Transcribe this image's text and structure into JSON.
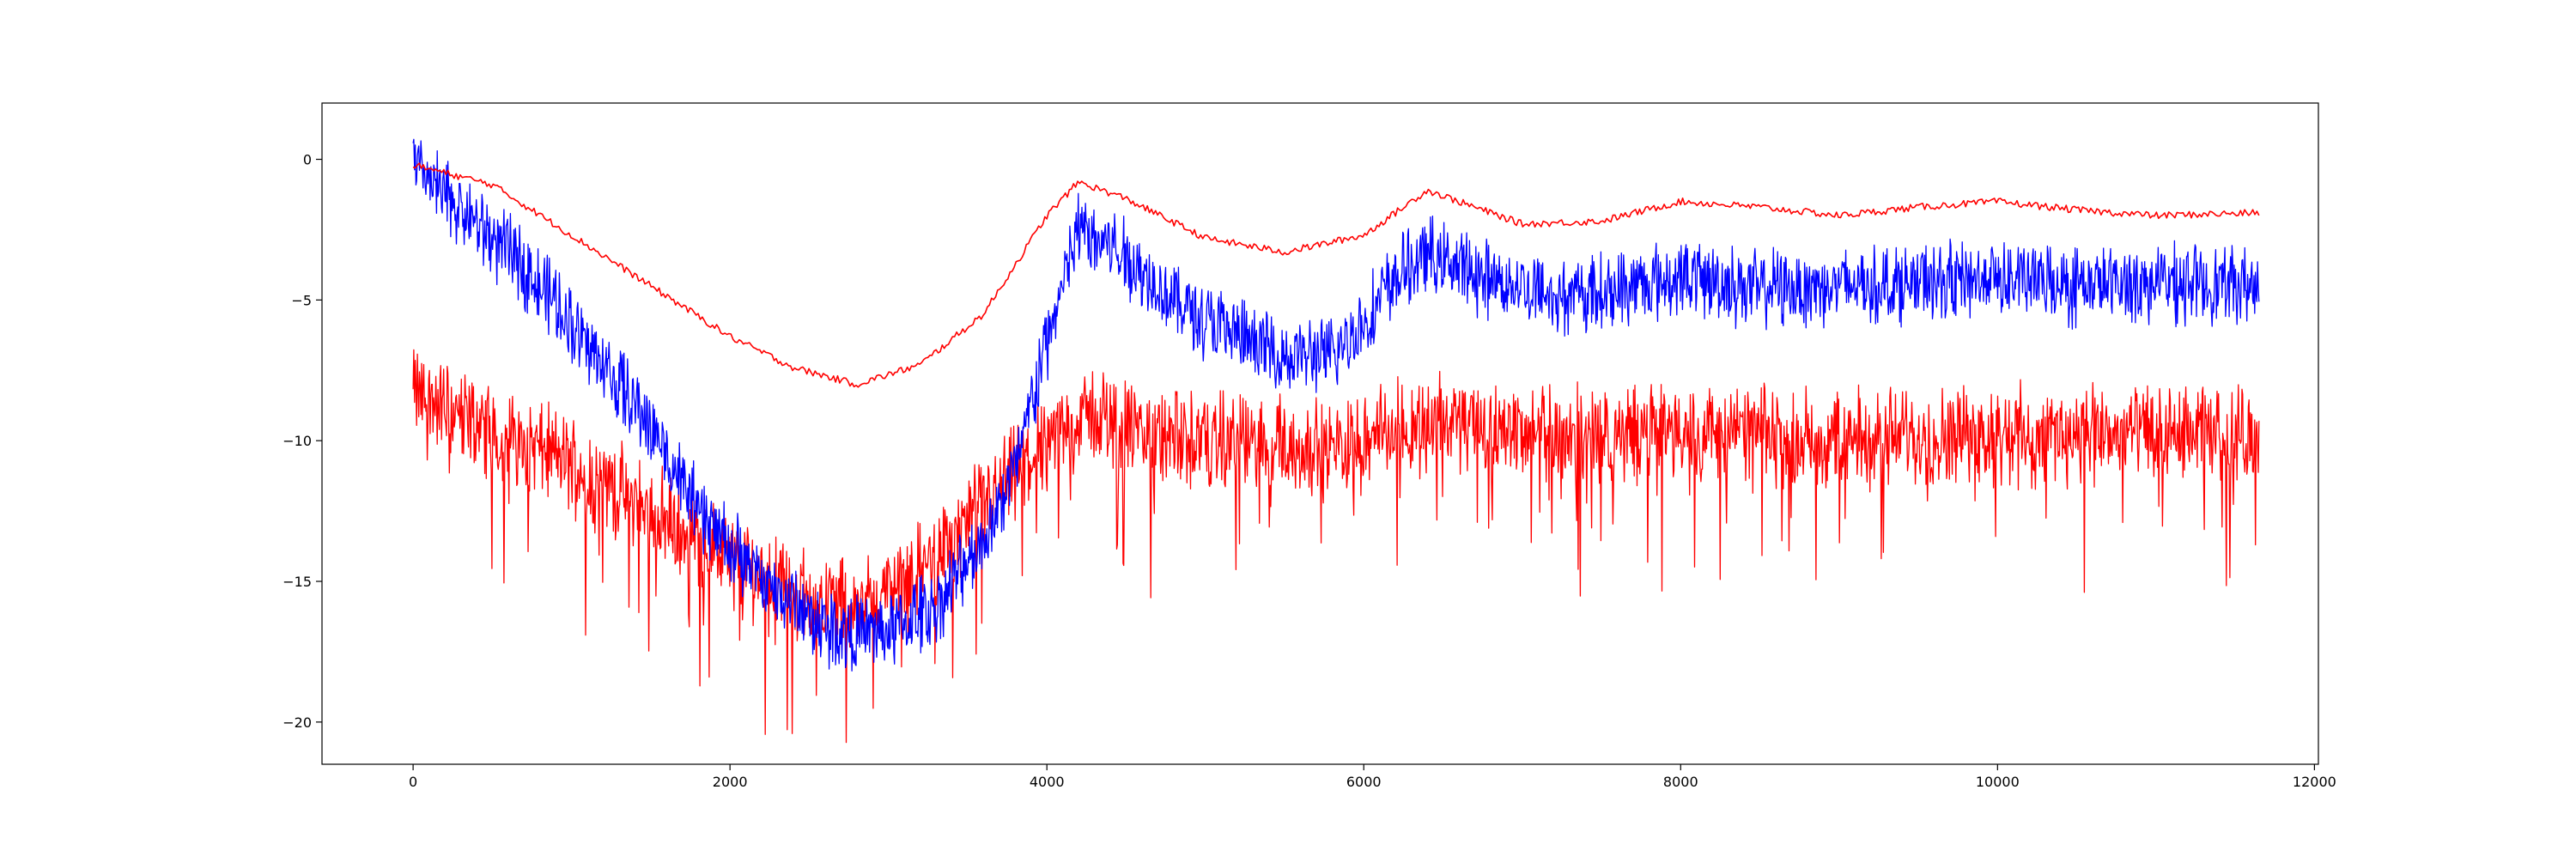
{
  "chart_data": {
    "type": "line",
    "title": "",
    "xlabel": "",
    "ylabel": "",
    "xlim": [
      -575,
      12025
    ],
    "ylim": [
      -21.5,
      2
    ],
    "x_ticks": [
      0,
      2000,
      4000,
      6000,
      8000,
      10000,
      12000
    ],
    "x_tick_labels": [
      "0",
      "2000",
      "4000",
      "6000",
      "8000",
      "10000",
      "12000"
    ],
    "y_ticks": [
      0,
      -5,
      -10,
      -15,
      -20
    ],
    "y_tick_labels": [
      "0",
      "−5",
      "−10",
      "−15",
      "−20"
    ],
    "grid": false,
    "legend": "none",
    "x_extent": [
      0,
      11650
    ],
    "series": [
      {
        "color": "#ff0000",
        "style": "smooth",
        "x": [
          0,
          500,
          1000,
          1500,
          2000,
          2400,
          2800,
          3200,
          3600,
          4000,
          4200,
          4500,
          5000,
          5500,
          6000,
          6400,
          7000,
          7500,
          8000,
          8500,
          9000,
          9500,
          10000,
          10500,
          11000,
          11650
        ],
        "y": [
          -0.2,
          -0.9,
          -2.7,
          -4.5,
          -6.3,
          -7.4,
          -8.0,
          -7.3,
          -5.5,
          -2.0,
          -0.8,
          -1.4,
          -2.8,
          -3.3,
          -2.7,
          -1.1,
          -2.3,
          -2.2,
          -1.5,
          -1.7,
          -2.0,
          -1.7,
          -1.5,
          -1.8,
          -2.0,
          -1.9
        ]
      },
      {
        "color": "#0000ff",
        "style": "noisy",
        "x": [
          0,
          300,
          700,
          1000,
          1500,
          1800,
          2200,
          2600,
          2800,
          3000,
          3300,
          3600,
          3800,
          4000,
          4200,
          4400,
          4800,
          5200,
          5500,
          5800,
          6000,
          6200,
          6400,
          6800,
          7300,
          8000,
          8500,
          9000,
          9500,
          10000,
          10500,
          11000,
          11650
        ],
        "y": [
          -0.3,
          -1.8,
          -3.8,
          -5.8,
          -9.5,
          -12.5,
          -15.0,
          -16.6,
          -16.9,
          -16.8,
          -15.9,
          -13.5,
          -11.0,
          -6.5,
          -2.5,
          -3.0,
          -5.0,
          -6.3,
          -7.0,
          -7.0,
          -5.8,
          -4.2,
          -3.4,
          -4.3,
          -4.9,
          -4.2,
          -4.6,
          -4.5,
          -4.4,
          -4.2,
          -4.5,
          -4.4,
          -4.5
        ]
      },
      {
        "color": "#ff0000",
        "style": "noisy-down-spikes",
        "x": [
          0,
          500,
          1000,
          1500,
          2000,
          2500,
          2800,
          3100,
          3400,
          3700,
          4000,
          4300,
          4600,
          5000,
          5500,
          5800,
          6000,
          6500,
          7000,
          7500,
          8000,
          8500,
          9000,
          9500,
          10000,
          10500,
          11000,
          11650
        ],
        "y": [
          -8.3,
          -9.6,
          -10.8,
          -12.5,
          -14.2,
          -15.6,
          -15.8,
          -15.1,
          -13.5,
          -11.8,
          -10.0,
          -9.0,
          -9.8,
          -10.0,
          -10.2,
          -10.4,
          -9.8,
          -9.3,
          -9.6,
          -9.8,
          -9.6,
          -9.8,
          -9.9,
          -9.8,
          -9.7,
          -9.8,
          -9.7,
          -9.8
        ]
      }
    ]
  }
}
